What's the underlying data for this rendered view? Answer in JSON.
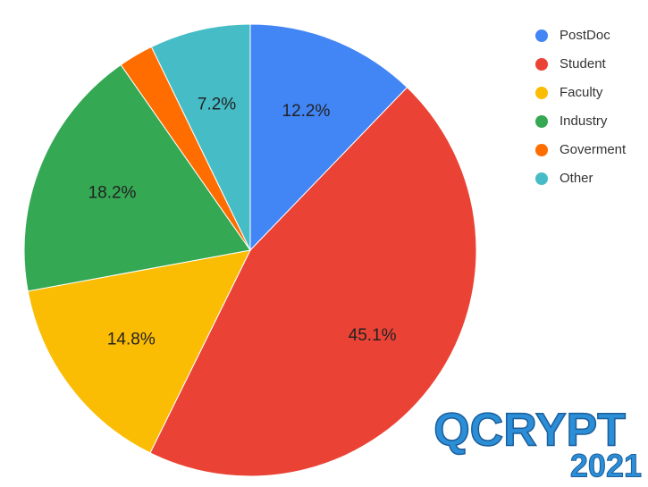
{
  "chart_data": {
    "type": "pie",
    "categories": [
      "PostDoc",
      "Student",
      "Faculty",
      "Industry",
      "Goverment",
      "Other"
    ],
    "values": [
      12.2,
      45.1,
      14.8,
      18.2,
      2.5,
      7.2
    ],
    "value_labels": [
      "12.2%",
      "45.1%",
      "14.8%",
      "18.2%",
      null,
      "7.2%"
    ],
    "colors": [
      "#4285f4",
      "#ea4335",
      "#fbbc04",
      "#34a853",
      "#ff6d01",
      "#46bdc6"
    ],
    "legend": "top-right"
  },
  "logo": {
    "name": "QCRYPT",
    "year": "2021"
  }
}
